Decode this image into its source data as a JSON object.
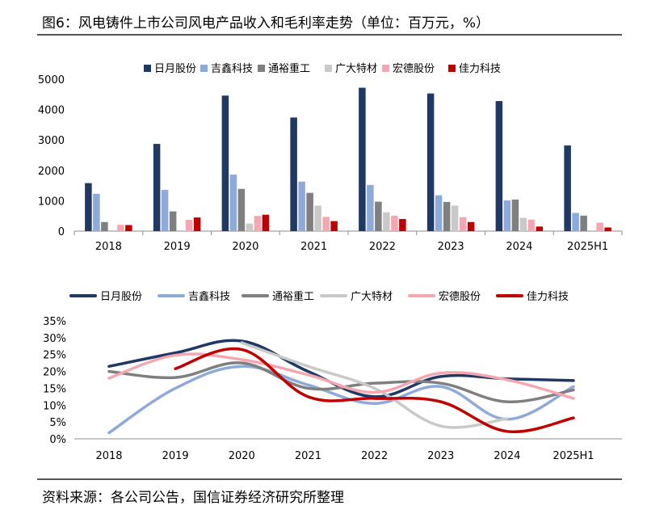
{
  "title": "图6：风电铸件上市公司风电产品收入和毛利率走势（单位：百万元，%）",
  "source": "资料来源：各公司公告，国信证券经济研究所整理",
  "chart_data": [
    {
      "type": "bar",
      "categories": [
        "2018",
        "2019",
        "2020",
        "2021",
        "2022",
        "2023",
        "2024",
        "2025H1"
      ],
      "ylim": [
        0,
        5000
      ],
      "yticks": [
        0,
        1000,
        2000,
        3000,
        4000,
        5000
      ],
      "legend_position": "top",
      "series": [
        {
          "name": "日月股份",
          "color": "#1f3864",
          "values": [
            1580,
            2870,
            4460,
            3740,
            4720,
            4530,
            4280,
            2820
          ]
        },
        {
          "name": "吉鑫科技",
          "color": "#8eaadb",
          "values": [
            1230,
            1360,
            1860,
            1630,
            1520,
            1180,
            1010,
            600
          ]
        },
        {
          "name": "通裕重工",
          "color": "#7f7f7f",
          "values": [
            300,
            650,
            1390,
            1260,
            970,
            960,
            1040,
            510
          ]
        },
        {
          "name": "广大特材",
          "color": "#c9c9c9",
          "values": [
            null,
            null,
            250,
            840,
            620,
            840,
            440,
            null
          ]
        },
        {
          "name": "宏德股份",
          "color": "#f4a7b0",
          "values": [
            210,
            370,
            500,
            470,
            510,
            460,
            380,
            280
          ]
        },
        {
          "name": "佳力科技",
          "color": "#c00000",
          "values": [
            200,
            450,
            540,
            330,
            400,
            300,
            150,
            120
          ]
        }
      ]
    },
    {
      "type": "line",
      "categories": [
        "2018",
        "2019",
        "2020",
        "2021",
        "2022",
        "2023",
        "2024",
        "2025H1"
      ],
      "ylim": [
        0,
        35
      ],
      "yticks": [
        0,
        5,
        10,
        15,
        20,
        25,
        30,
        35
      ],
      "ytick_labels": [
        "0%",
        "5%",
        "10%",
        "15%",
        "20%",
        "25%",
        "30%",
        "35%"
      ],
      "legend_position": "top",
      "series": [
        {
          "name": "日月股份",
          "color": "#1f3864",
          "values": [
            21.5,
            25.5,
            29,
            20,
            12.5,
            18.5,
            17.8,
            17.3
          ]
        },
        {
          "name": "吉鑫科技",
          "color": "#8eaadb",
          "values": [
            1.8,
            15,
            21.5,
            16,
            10.5,
            15.5,
            5.8,
            15.5
          ]
        },
        {
          "name": "通裕重工",
          "color": "#7f7f7f",
          "values": [
            20,
            18.2,
            22.5,
            15,
            16.5,
            16.5,
            11,
            14.5
          ]
        },
        {
          "name": "广大特材",
          "color": "#c9c9c9",
          "values": [
            null,
            null,
            28.5,
            21.5,
            15,
            3.8,
            6,
            null
          ]
        },
        {
          "name": "宏德股份",
          "color": "#f4a7b0",
          "values": [
            18,
            24.8,
            23.5,
            19,
            13.8,
            19.5,
            17.5,
            12
          ]
        },
        {
          "name": "佳力科技",
          "color": "#c00000",
          "values": [
            null,
            20.8,
            26.5,
            12.5,
            12,
            11,
            2.2,
            6.2
          ]
        }
      ]
    }
  ]
}
